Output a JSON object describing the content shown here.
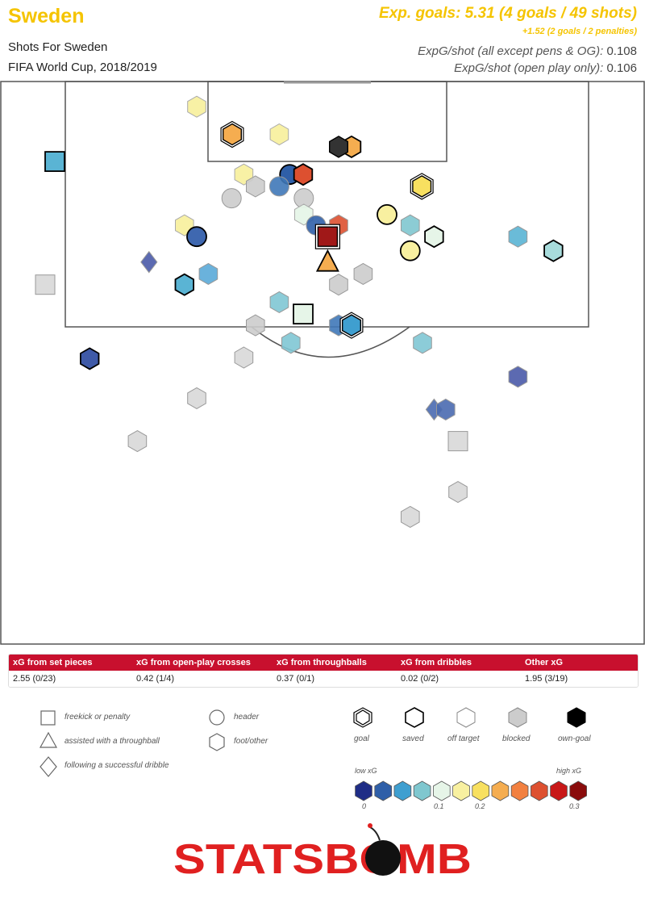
{
  "header": {
    "team": "Sweden",
    "subtitle": "Shots For Sweden",
    "competition": "FIFA World Cup, 2018/2019",
    "xg_summary": "Exp. goals: 5.31 (4 goals / 49 shots)",
    "xg_extra": "+1.52 (2 goals / 2 penalties)",
    "ratio1_label": "ExpG/shot (all except pens & OG):",
    "ratio1_value": "0.108",
    "ratio2_label": "ExpG/shot (open play only):",
    "ratio2_value": "0.106"
  },
  "breakdown": {
    "headers": [
      "xG from set pieces",
      "xG from open-play crosses",
      "xG from throughballs",
      "xG from dribbles",
      "Other xG"
    ],
    "values": [
      "2.55 (0/23)",
      "0.42 (1/4)",
      "0.37 (0/1)",
      "0.02 (0/2)",
      "1.95 (3/19)"
    ]
  },
  "legend": {
    "shapes": [
      "freekick or penalty",
      "assisted with a throughball",
      "following a successful dribble",
      "header",
      "foot/other"
    ],
    "outcomes": [
      "goal",
      "saved",
      "off target",
      "blocked",
      "own-goal"
    ],
    "scale_low": "low xG",
    "scale_high": "high xG",
    "scale_ticks": [
      "0",
      "0.1",
      "0.2",
      "0.3"
    ],
    "scale_colors": [
      "#1f2d86",
      "#2f5fa8",
      "#3f9fd0",
      "#7fc7cf",
      "#e6f5e8",
      "#f8f0a0",
      "#f8e060",
      "#f5ad50",
      "#f28040",
      "#dd5030",
      "#c81818",
      "#8a0c0c"
    ]
  },
  "logo": "STATSBOMB",
  "chart_data": {
    "type": "scatter",
    "title": "Shots For Sweden",
    "note": "Shot map: each shot positioned on the attacking half of the pitch (x = across pitch 0-100, y = distance from goal line 0-100). Color encodes xG on low-to-high scale.",
    "shots": [
      {
        "x": 30.5,
        "y": 4.6,
        "shape": "foot",
        "outcome": "off",
        "color": "#f8f0a0"
      },
      {
        "x": 36.0,
        "y": 9.5,
        "shape": "foot",
        "outcome": "goal",
        "color": "#f5ad50"
      },
      {
        "x": 43.3,
        "y": 9.5,
        "shape": "foot",
        "outcome": "off",
        "color": "#f8f0a0"
      },
      {
        "x": 54.5,
        "y": 11.7,
        "shape": "foot",
        "outcome": "saved",
        "color": "#f5ad50"
      },
      {
        "x": 52.5,
        "y": 11.7,
        "shape": "foot",
        "outcome": "own",
        "color": "#333333"
      },
      {
        "x": 8.5,
        "y": 14.3,
        "shape": "square",
        "outcome": "saved",
        "color": "#5ab4d4"
      },
      {
        "x": 37.8,
        "y": 16.6,
        "shape": "foot",
        "outcome": "off",
        "color": "#f8f0a0"
      },
      {
        "x": 44.9,
        "y": 16.6,
        "shape": "header",
        "outcome": "saved",
        "color": "#2f5fa8"
      },
      {
        "x": 47.0,
        "y": 16.6,
        "shape": "foot",
        "outcome": "saved",
        "color": "#dd5030"
      },
      {
        "x": 39.6,
        "y": 18.7,
        "shape": "foot",
        "outcome": "blocked",
        "color": "#cccccc"
      },
      {
        "x": 43.3,
        "y": 18.7,
        "shape": "header",
        "outcome": "blocked",
        "color": "#3f78b8"
      },
      {
        "x": 65.4,
        "y": 18.7,
        "shape": "foot",
        "outcome": "goal",
        "color": "#f8e060"
      },
      {
        "x": 35.9,
        "y": 20.8,
        "shape": "header",
        "outcome": "blocked",
        "color": "#cccccc"
      },
      {
        "x": 47.1,
        "y": 20.8,
        "shape": "header",
        "outcome": "blocked",
        "color": "#cccccc"
      },
      {
        "x": 47.1,
        "y": 23.7,
        "shape": "foot",
        "outcome": "off",
        "color": "#e6f5e8"
      },
      {
        "x": 60.0,
        "y": 23.7,
        "shape": "header",
        "outcome": "saved",
        "color": "#f8f0a0"
      },
      {
        "x": 28.6,
        "y": 25.6,
        "shape": "foot",
        "outcome": "off",
        "color": "#f8f0a0"
      },
      {
        "x": 49.0,
        "y": 25.6,
        "shape": "header",
        "outcome": "blocked",
        "color": "#2f5fa8"
      },
      {
        "x": 52.5,
        "y": 25.6,
        "shape": "foot",
        "outcome": "blocked",
        "color": "#dd5030"
      },
      {
        "x": 63.6,
        "y": 25.6,
        "shape": "foot",
        "outcome": "blocked",
        "color": "#7fc7cf"
      },
      {
        "x": 30.5,
        "y": 27.6,
        "shape": "header",
        "outcome": "saved",
        "color": "#3f68b0"
      },
      {
        "x": 50.8,
        "y": 27.6,
        "shape": "square",
        "outcome": "goal",
        "color": "#a01818"
      },
      {
        "x": 67.3,
        "y": 27.6,
        "shape": "foot",
        "outcome": "saved",
        "color": "#e6f5e8"
      },
      {
        "x": 80.3,
        "y": 27.6,
        "shape": "foot",
        "outcome": "blocked",
        "color": "#5ab4d4"
      },
      {
        "x": 63.6,
        "y": 30.1,
        "shape": "header",
        "outcome": "saved",
        "color": "#f8f0a0"
      },
      {
        "x": 85.8,
        "y": 30.1,
        "shape": "foot",
        "outcome": "saved",
        "color": "#a8dcdc"
      },
      {
        "x": 23.1,
        "y": 32.1,
        "shape": "diamond",
        "outcome": "blocked",
        "color": "#4a5aa8"
      },
      {
        "x": 50.8,
        "y": 32.1,
        "shape": "triangle",
        "outcome": "saved",
        "color": "#f5ad50"
      },
      {
        "x": 32.3,
        "y": 34.2,
        "shape": "foot",
        "outcome": "blocked",
        "color": "#5aaad8"
      },
      {
        "x": 56.3,
        "y": 34.2,
        "shape": "foot",
        "outcome": "blocked",
        "color": "#cccccc"
      },
      {
        "x": 7.0,
        "y": 36.1,
        "shape": "square",
        "outcome": "blocked",
        "color": "#d8d8d8"
      },
      {
        "x": 28.6,
        "y": 36.1,
        "shape": "foot",
        "outcome": "saved",
        "color": "#5ab4d4"
      },
      {
        "x": 52.5,
        "y": 36.1,
        "shape": "foot",
        "outcome": "blocked",
        "color": "#cccccc"
      },
      {
        "x": 43.3,
        "y": 39.2,
        "shape": "foot",
        "outcome": "blocked",
        "color": "#7fc7d4"
      },
      {
        "x": 47.0,
        "y": 41.3,
        "shape": "square",
        "outcome": "saved",
        "color": "#e6f5e8"
      },
      {
        "x": 39.6,
        "y": 43.3,
        "shape": "foot",
        "outcome": "blocked",
        "color": "#cccccc"
      },
      {
        "x": 52.5,
        "y": 43.3,
        "shape": "foot",
        "outcome": "blocked",
        "color": "#3f78b8"
      },
      {
        "x": 54.5,
        "y": 43.3,
        "shape": "foot",
        "outcome": "goal",
        "color": "#3f9fd0"
      },
      {
        "x": 45.1,
        "y": 46.4,
        "shape": "foot",
        "outcome": "blocked",
        "color": "#7fc7d4"
      },
      {
        "x": 65.5,
        "y": 46.4,
        "shape": "foot",
        "outcome": "blocked",
        "color": "#7fc7d4"
      },
      {
        "x": 13.9,
        "y": 49.2,
        "shape": "foot",
        "outcome": "saved",
        "color": "#3f5aa8"
      },
      {
        "x": 37.8,
        "y": 49.0,
        "shape": "foot",
        "outcome": "blocked",
        "color": "#d8d8d8"
      },
      {
        "x": 80.3,
        "y": 52.4,
        "shape": "foot",
        "outcome": "blocked",
        "color": "#4a5aa8"
      },
      {
        "x": 30.5,
        "y": 56.2,
        "shape": "foot",
        "outcome": "blocked",
        "color": "#d8d8d8"
      },
      {
        "x": 67.3,
        "y": 58.2,
        "shape": "diamond",
        "outcome": "blocked",
        "color": "#4a6ab0"
      },
      {
        "x": 69.1,
        "y": 58.2,
        "shape": "foot",
        "outcome": "blocked",
        "color": "#4a6ab0"
      },
      {
        "x": 21.3,
        "y": 63.8,
        "shape": "foot",
        "outcome": "blocked",
        "color": "#d8d8d8"
      },
      {
        "x": 71.0,
        "y": 63.8,
        "shape": "square",
        "outcome": "blocked",
        "color": "#d8d8d8"
      },
      {
        "x": 71.0,
        "y": 72.8,
        "shape": "foot",
        "outcome": "blocked",
        "color": "#d8d8d8"
      },
      {
        "x": 63.6,
        "y": 77.2,
        "shape": "foot",
        "outcome": "blocked",
        "color": "#d8d8d8"
      }
    ]
  }
}
